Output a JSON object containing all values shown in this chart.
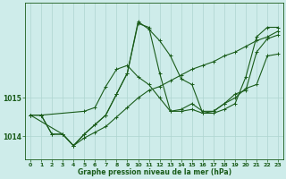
{
  "xlabel": "Graphe pression niveau de la mer (hPa)",
  "background_color": "#ceecea",
  "grid_color": "#aed4d0",
  "line_color": "#1a5c1a",
  "xlim": [
    -0.5,
    23.5
  ],
  "ylim": [
    1013.4,
    1017.5
  ],
  "yticks": [
    1014,
    1015
  ],
  "xticks": [
    0,
    1,
    2,
    3,
    4,
    5,
    6,
    7,
    8,
    9,
    10,
    11,
    12,
    13,
    14,
    15,
    16,
    17,
    18,
    19,
    20,
    21,
    22,
    23
  ],
  "series": [
    {
      "x": [
        0,
        3,
        4,
        5,
        6,
        7,
        8,
        9,
        10,
        11,
        12,
        13,
        14,
        15,
        16,
        17,
        18,
        19,
        20,
        21,
        22,
        23
      ],
      "y": [
        1014.55,
        1014.05,
        1013.75,
        1013.95,
        1014.1,
        1014.25,
        1014.5,
        1014.75,
        1015.0,
        1015.2,
        1015.3,
        1015.45,
        1015.6,
        1015.75,
        1015.85,
        1015.95,
        1016.1,
        1016.2,
        1016.35,
        1016.5,
        1016.6,
        1016.75
      ]
    },
    {
      "x": [
        0,
        1,
        2,
        3,
        4,
        5,
        6,
        7,
        8,
        9,
        10,
        11,
        12,
        13,
        14,
        15,
        16,
        17,
        18,
        19,
        20,
        21,
        22,
        23
      ],
      "y": [
        1014.55,
        1014.55,
        1014.05,
        1014.05,
        1013.75,
        1014.05,
        1014.3,
        1014.55,
        1015.1,
        1015.65,
        1017.0,
        1016.8,
        1016.5,
        1016.1,
        1015.5,
        1015.35,
        1014.6,
        1014.6,
        1014.7,
        1014.85,
        1015.55,
        1016.6,
        1016.85,
        1016.85
      ]
    },
    {
      "x": [
        0,
        1,
        5,
        6,
        7,
        8,
        9,
        10,
        11,
        12,
        13,
        14,
        15,
        16,
        17,
        18,
        19,
        20,
        21,
        22,
        23
      ],
      "y": [
        1014.55,
        1014.55,
        1014.65,
        1014.75,
        1015.3,
        1015.75,
        1015.85,
        1015.55,
        1015.35,
        1015.0,
        1014.65,
        1014.7,
        1014.85,
        1014.65,
        1014.65,
        1014.85,
        1015.1,
        1015.2,
        1016.2,
        1016.55,
        1016.65
      ]
    },
    {
      "x": [
        0,
        1,
        2,
        3,
        4,
        5,
        6,
        7,
        8,
        9,
        10,
        11,
        12,
        13,
        14,
        15,
        16,
        17,
        18,
        19,
        20,
        21,
        22,
        23
      ],
      "y": [
        1014.55,
        1014.55,
        1014.05,
        1014.05,
        1013.75,
        1014.05,
        1014.3,
        1014.55,
        1015.1,
        1015.65,
        1016.95,
        1016.85,
        1015.65,
        1014.65,
        1014.65,
        1014.7,
        1014.6,
        1014.65,
        1014.85,
        1015.0,
        1015.25,
        1015.35,
        1016.1,
        1016.15
      ]
    }
  ]
}
